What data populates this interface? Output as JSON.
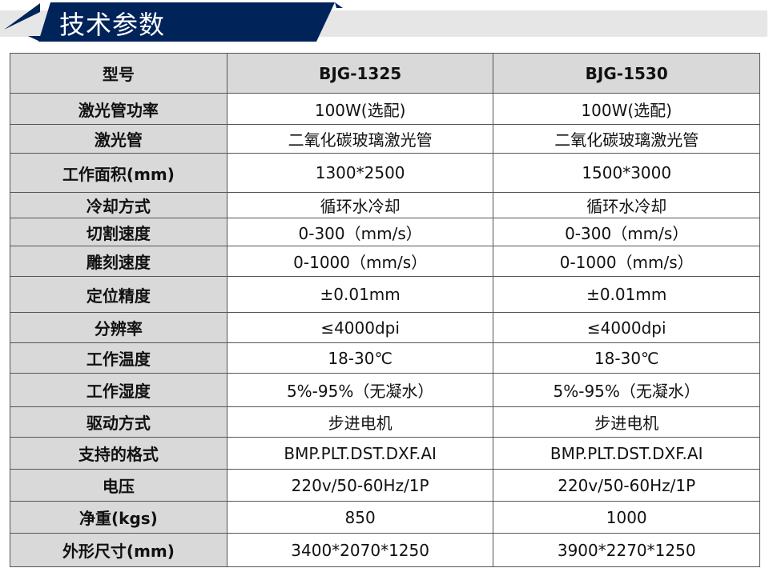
{
  "header": {
    "title": "技术参数",
    "accent": "#00235a"
  },
  "table": {
    "columns": [
      "型号",
      "BJG-1325",
      "BJG-1530"
    ],
    "rows": [
      [
        "激光管功率",
        "100W(选配)",
        "100W(选配)"
      ],
      [
        "激光管",
        "二氧化碳玻璃激光管",
        "二氧化碳玻璃激光管"
      ],
      [
        "工作面积(mm)",
        "1300*2500",
        "1500*3000"
      ],
      [
        "冷却方式",
        "循环水冷却",
        "循环水冷却"
      ],
      [
        "切割速度",
        "0-300（mm/s）",
        "0-300（mm/s）"
      ],
      [
        "雕刻速度",
        "0-1000（mm/s）",
        "0-1000（mm/s）"
      ],
      [
        "定位精度",
        "±0.01mm",
        "±0.01mm"
      ],
      [
        "分辨率",
        "≤4000dpi",
        "≤4000dpi"
      ],
      [
        "工作温度",
        "18-30℃",
        "18-30℃"
      ],
      [
        "工作湿度",
        "5%-95%（无凝水）",
        "5%-95%（无凝水）"
      ],
      [
        "驱动方式",
        "步进电机",
        "步进电机"
      ],
      [
        "支持的格式",
        "BMP.PLT.DST.DXF.AI",
        "BMP.PLT.DST.DXF.AI"
      ],
      [
        "电压",
        "220v/50-60Hz/1P",
        "220v/50-60Hz/1P"
      ],
      [
        "净重(kgs)",
        "850",
        "1000"
      ],
      [
        "外形尺寸(mm)",
        "3400*2070*1250",
        "3900*2270*1250"
      ]
    ]
  }
}
